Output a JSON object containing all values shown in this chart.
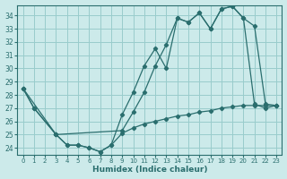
{
  "xlabel": "Humidex (Indice chaleur)",
  "bg_color": "#cceaea",
  "grid_color": "#99cccc",
  "line_color": "#2a6e6e",
  "xlim": [
    -0.5,
    23.5
  ],
  "ylim": [
    23.5,
    34.8
  ],
  "yticks": [
    24,
    25,
    26,
    27,
    28,
    29,
    30,
    31,
    32,
    33,
    34
  ],
  "xticks": [
    0,
    1,
    2,
    3,
    4,
    5,
    6,
    7,
    8,
    9,
    10,
    11,
    12,
    13,
    14,
    15,
    16,
    17,
    18,
    19,
    20,
    21,
    22,
    23
  ],
  "line1_x": [
    0,
    1,
    3,
    4,
    5,
    6,
    7,
    8,
    9,
    10,
    11,
    12,
    13,
    14,
    15,
    16,
    17,
    18,
    19,
    20,
    21,
    22,
    23
  ],
  "line1_y": [
    28.5,
    27.0,
    25.0,
    24.2,
    24.2,
    24.0,
    23.7,
    24.2,
    26.5,
    28.2,
    30.2,
    31.5,
    30.0,
    33.8,
    33.5,
    34.2,
    33.0,
    34.5,
    34.7,
    33.8,
    33.2,
    27.3,
    27.2
  ],
  "line2_x": [
    0,
    3,
    9,
    10,
    11,
    12,
    13,
    14,
    15,
    16,
    17,
    18,
    19,
    20,
    21,
    22,
    23
  ],
  "line2_y": [
    28.5,
    25.0,
    25.3,
    26.7,
    28.2,
    30.2,
    31.8,
    33.8,
    33.5,
    34.2,
    33.0,
    34.5,
    34.7,
    33.8,
    27.3,
    27.0,
    27.2
  ],
  "line3_x": [
    0,
    1,
    3,
    4,
    5,
    6,
    7,
    8,
    9,
    10,
    11,
    12,
    13,
    14,
    15,
    16,
    17,
    18,
    19,
    20,
    21,
    22,
    23
  ],
  "line3_y": [
    28.5,
    27.0,
    25.0,
    24.2,
    24.2,
    24.0,
    23.7,
    24.2,
    25.1,
    25.5,
    25.8,
    26.0,
    26.2,
    26.4,
    26.5,
    26.7,
    26.8,
    27.0,
    27.1,
    27.2,
    27.2,
    27.2,
    27.2
  ]
}
